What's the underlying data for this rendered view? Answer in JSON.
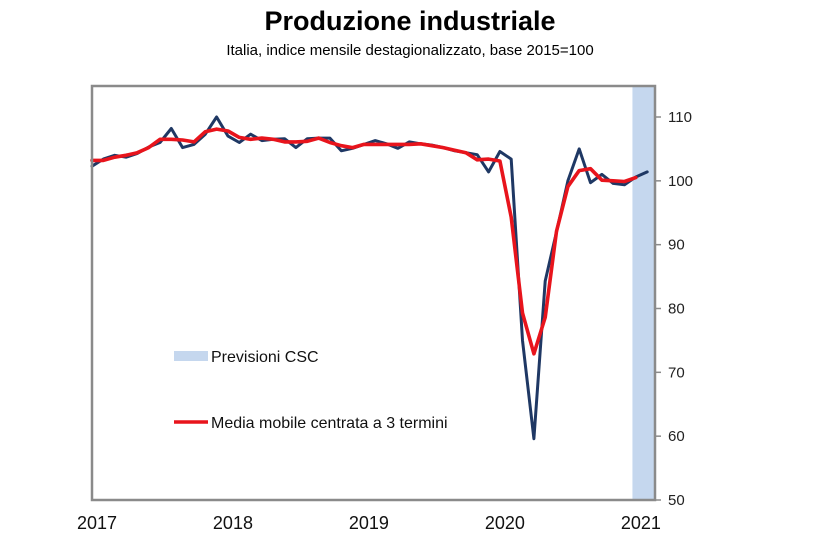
{
  "chart_data": {
    "type": "line",
    "title": "Produzione industriale",
    "subtitle": "Italia, indice mensile destagionalizzato, base 2015=100",
    "xlabel": "",
    "ylabel": "",
    "x_start": "2017-01",
    "x_tick_labels": [
      "2017",
      "2018",
      "2019",
      "2020",
      "2021"
    ],
    "x_tick_months": [
      0,
      12,
      24,
      36,
      48
    ],
    "x_range_months": [
      0,
      50
    ],
    "y_ticks": [
      50,
      60,
      70,
      80,
      90,
      100,
      110
    ],
    "ylim": [
      50,
      113
    ],
    "y_axis_side": "right",
    "grid": false,
    "forecast_band": {
      "label": "Previsioni CSC",
      "from_month": 47.7,
      "to_month": 50,
      "color": "#c5d7ee"
    },
    "series": [
      {
        "name": "Produzione industriale",
        "color": "#1f3864",
        "start_month": 0,
        "values": [
          102.3,
          103.4,
          104.0,
          103.7,
          104.3,
          105.3,
          106.0,
          108.2,
          105.2,
          105.7,
          107.3,
          110.0,
          107.0,
          106.0,
          107.3,
          106.3,
          106.5,
          106.6,
          105.2,
          106.6,
          106.7,
          106.7,
          104.7,
          105.1,
          105.7,
          106.3,
          105.8,
          105.1,
          106.1,
          105.8,
          105.6,
          105.2,
          104.7,
          104.4,
          104.1,
          101.4,
          104.6,
          103.4,
          75.0,
          59.6,
          84.3,
          92.0,
          100.0,
          105.0,
          99.7,
          101.0,
          99.6,
          99.4,
          100.6,
          101.4
        ]
      },
      {
        "name": "Media mobile centrata a 3 termini",
        "color": "#e8141c",
        "start_month": 0,
        "values": [
          103.2,
          103.2,
          103.7,
          104.0,
          104.4,
          105.2,
          106.5,
          106.5,
          106.4,
          106.1,
          107.7,
          108.1,
          107.8,
          106.8,
          106.5,
          106.7,
          106.5,
          106.1,
          106.1,
          106.2,
          106.7,
          106.0,
          105.5,
          105.2,
          105.7,
          105.7,
          105.7,
          105.7,
          105.7,
          105.8,
          105.5,
          105.2,
          104.8,
          104.4,
          103.3,
          103.4,
          103.1,
          94.3,
          79.3,
          72.9,
          78.6,
          92.1,
          99.1,
          101.6,
          101.9,
          100.1,
          100.0,
          99.9,
          100.5
        ]
      }
    ],
    "legend": [
      {
        "label": "Previsioni CSC",
        "kind": "band",
        "color": "#c5d7ee"
      },
      {
        "label": "Media mobile centrata a 3 termini",
        "kind": "line",
        "color": "#e8141c"
      }
    ],
    "legend_placement": "center-left"
  }
}
